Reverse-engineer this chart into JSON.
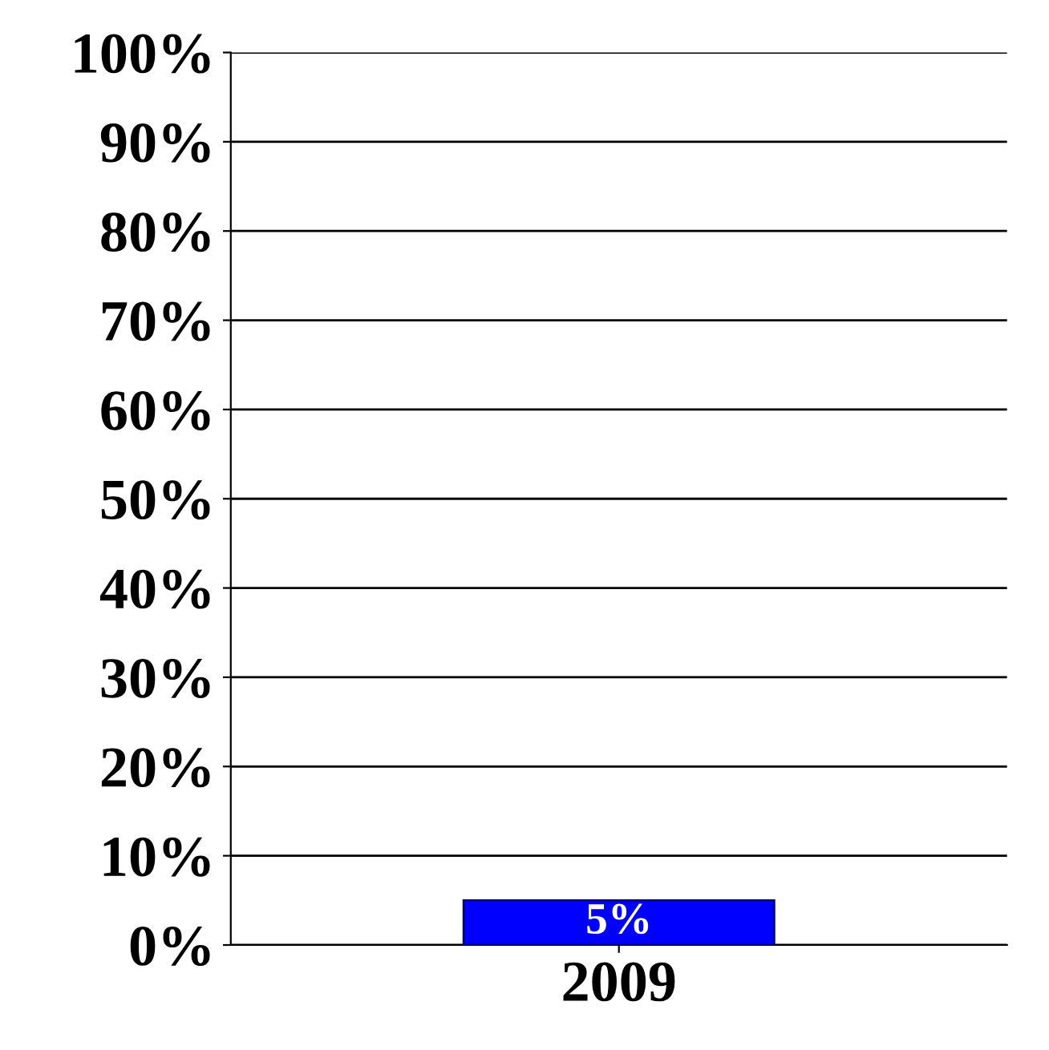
{
  "chart_data": {
    "type": "bar",
    "categories": [
      "2009"
    ],
    "values": [
      5
    ],
    "value_labels": [
      "5%"
    ],
    "color": "#0000ff",
    "ylim": [
      0,
      100
    ],
    "yticks": [
      {
        "value": 0,
        "label": "0%"
      },
      {
        "value": 10,
        "label": "10%"
      },
      {
        "value": 20,
        "label": "20%"
      },
      {
        "value": 30,
        "label": "30%"
      },
      {
        "value": 40,
        "label": "40%"
      },
      {
        "value": 50,
        "label": "50%"
      },
      {
        "value": 60,
        "label": "60%"
      },
      {
        "value": 70,
        "label": "70%"
      },
      {
        "value": 80,
        "label": "80%"
      },
      {
        "value": 90,
        "label": "90%"
      },
      {
        "value": 100,
        "label": "100%"
      }
    ],
    "grid": "y"
  }
}
